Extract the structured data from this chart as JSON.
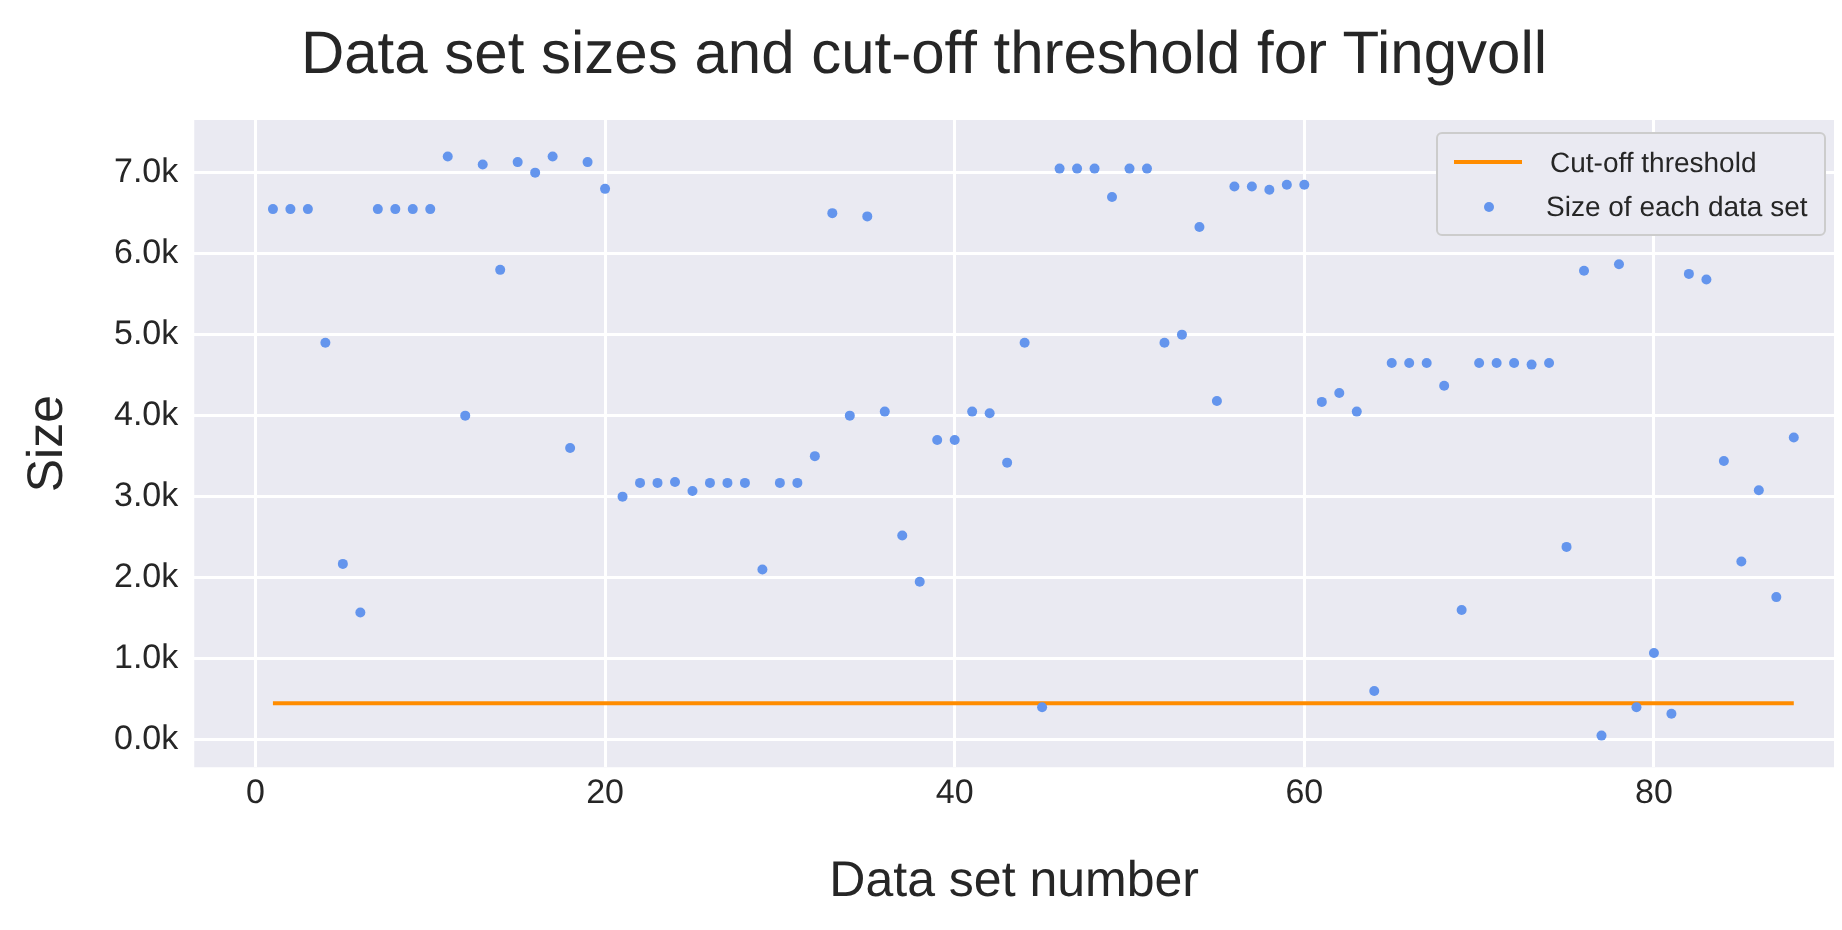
{
  "chart_data": {
    "type": "scatter",
    "title": "Data set sizes and cut-off threshold for Tingvoll",
    "xlabel": "Data set number",
    "ylabel": "Size",
    "xlim": [
      -3.5,
      90.3
    ],
    "xticks": [
      0,
      20,
      40,
      60,
      80
    ],
    "ylim": [
      -340,
      7650
    ],
    "yticks": [
      {
        "value": 0,
        "label": "0.0k"
      },
      {
        "value": 1000,
        "label": "1.0k"
      },
      {
        "value": 2000,
        "label": "2.0k"
      },
      {
        "value": 3000,
        "label": "3.0k"
      },
      {
        "value": 4000,
        "label": "4.0k"
      },
      {
        "value": 5000,
        "label": "5.0k"
      },
      {
        "value": 6000,
        "label": "6.0k"
      },
      {
        "value": 7000,
        "label": "7.0k"
      }
    ],
    "grid": true,
    "legend": "top right",
    "marker": "circle",
    "series": [
      {
        "name": "Cut-off threshold",
        "type": "line",
        "color": "#ff8c00",
        "marker": "none",
        "x": [
          1,
          88
        ],
        "values": [
          450,
          450
        ]
      },
      {
        "name": "Size of each data set",
        "color": "#6495ed",
        "x": [
          1,
          2,
          3,
          4,
          5,
          6,
          7,
          8,
          9,
          10,
          11,
          12,
          13,
          14,
          15,
          16,
          17,
          18,
          19,
          20,
          21,
          22,
          23,
          24,
          25,
          26,
          27,
          28,
          29,
          30,
          31,
          32,
          33,
          34,
          35,
          36,
          37,
          38,
          39,
          40,
          41,
          42,
          43,
          44,
          45,
          46,
          47,
          48,
          49,
          50,
          51,
          52,
          53,
          54,
          55,
          56,
          57,
          58,
          59,
          60,
          61,
          62,
          63,
          64,
          65,
          66,
          67,
          68,
          69,
          70,
          71,
          72,
          73,
          74,
          75,
          76,
          77,
          78,
          79,
          80,
          81,
          82,
          83,
          84,
          85,
          86,
          87,
          88
        ],
        "values": [
          6550,
          6550,
          6550,
          4900,
          2170,
          1570,
          6550,
          6550,
          6550,
          6550,
          7200,
          4000,
          7100,
          5800,
          7130,
          7000,
          7200,
          3600,
          7130,
          6800,
          3000,
          3170,
          3170,
          3180,
          3070,
          3170,
          3170,
          3170,
          2100,
          3170,
          3170,
          3500,
          6500,
          4000,
          6460,
          4050,
          2520,
          1950,
          3700,
          3700,
          4050,
          4030,
          3420,
          4900,
          400,
          7050,
          7050,
          7050,
          6700,
          7050,
          7050,
          4900,
          5000,
          6330,
          4180,
          6830,
          6830,
          6790,
          6850,
          6850,
          4170,
          4280,
          4050,
          600,
          4650,
          4650,
          4650,
          4370,
          1600,
          4650,
          4650,
          4650,
          4630,
          4650,
          2380,
          5790,
          50,
          5870,
          400,
          1070,
          320,
          5750,
          5680,
          3440,
          2200,
          3080,
          1760,
          3730
        ]
      }
    ]
  }
}
